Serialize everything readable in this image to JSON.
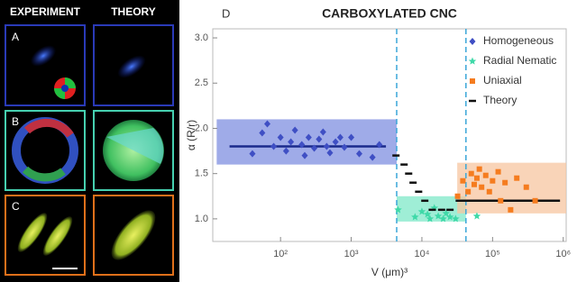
{
  "image_panels": {
    "headers": [
      "EXPERIMENT",
      "THEORY"
    ],
    "rows": [
      "A",
      "B",
      "C"
    ]
  },
  "chart_data": {
    "type": "scatter",
    "panel_label": "D",
    "title": "CARBOXYLATED CNC",
    "xlabel": "V (μm)³",
    "ylabel": "α (R/r)",
    "xscale": "log",
    "xlim": [
      11,
      1100000
    ],
    "ylim": [
      0.75,
      3.1
    ],
    "xticks": [
      {
        "value": 100,
        "label": "10²"
      },
      {
        "value": 1000,
        "label": "10³"
      },
      {
        "value": 10000,
        "label": "10⁴"
      },
      {
        "value": 100000,
        "label": "10⁵"
      },
      {
        "value": 1000000,
        "label": "10⁶"
      }
    ],
    "yticks": [
      {
        "value": 1,
        "label": "1.0"
      },
      {
        "value": 1.5,
        "label": "1.5"
      },
      {
        "value": 2,
        "label": "2.0"
      },
      {
        "value": 2.5,
        "label": "2.5"
      },
      {
        "value": 3,
        "label": "3.0"
      }
    ],
    "legend": "upper right",
    "regions": [
      {
        "x": [
          12.5,
          4400
        ],
        "y": [
          1.6,
          2.1
        ],
        "color": "#7f8fe0"
      },
      {
        "x": [
          4400,
          42000
        ],
        "y": [
          0.97,
          1.25
        ],
        "color": "#7fe8c8"
      },
      {
        "x": [
          31600,
          1100000
        ],
        "y": [
          1.06,
          1.62
        ],
        "color": "#f7c6a0"
      }
    ],
    "vlines": [
      {
        "x": 4400,
        "color": "#3aa6d8"
      },
      {
        "x": 42000,
        "color": "#3aa6d8"
      }
    ],
    "theory_lines": [
      {
        "x": [
          19,
          3100
        ],
        "y": 1.8,
        "color": "#1a2a8c"
      },
      {
        "x": [
          30000,
          900000
        ],
        "y": 1.2,
        "color": "#111111"
      }
    ],
    "series": [
      {
        "name": "Homogeneous",
        "marker": "diamond",
        "color": "#3f4fc4",
        "x": [
          40,
          55,
          65,
          80,
          100,
          120,
          140,
          160,
          200,
          220,
          250,
          300,
          350,
          400,
          450,
          500,
          600,
          700,
          800,
          1000,
          1300,
          2000,
          2500
        ],
        "values": [
          1.72,
          1.95,
          2.05,
          1.8,
          1.9,
          1.75,
          1.85,
          1.98,
          1.82,
          1.7,
          1.9,
          1.78,
          1.88,
          1.96,
          1.8,
          1.73,
          1.85,
          1.9,
          1.79,
          1.9,
          1.72,
          1.68,
          1.82
        ]
      },
      {
        "name": "Radial Nematic",
        "marker": "star",
        "color": "#3fd9a8",
        "x": [
          4600,
          8000,
          10000,
          12000,
          13000,
          15000,
          17000,
          20000,
          22000,
          25000,
          30000,
          60000
        ],
        "values": [
          1.1,
          1.02,
          1.08,
          1.05,
          1.0,
          1.12,
          1.03,
          1.0,
          1.06,
          1.02,
          1.0,
          1.03
        ]
      },
      {
        "name": "Uniaxial",
        "marker": "square",
        "color": "#f57c1f",
        "x": [
          32000,
          38000,
          45000,
          50000,
          55000,
          60000,
          65000,
          70000,
          80000,
          90000,
          100000,
          120000,
          130000,
          150000,
          180000,
          220000,
          300000,
          400000
        ],
        "values": [
          1.25,
          1.42,
          1.3,
          1.5,
          1.38,
          1.45,
          1.55,
          1.35,
          1.48,
          1.3,
          1.42,
          1.52,
          1.2,
          1.4,
          1.1,
          1.45,
          1.35,
          1.2
        ]
      },
      {
        "name": "Theory",
        "marker": "dash",
        "color": "#111111",
        "x": [
          4300,
          5600,
          6500,
          7500,
          9000,
          11000,
          14000,
          19000,
          25000
        ],
        "values": [
          1.7,
          1.6,
          1.5,
          1.4,
          1.3,
          1.2,
          1.1,
          1.1,
          1.1
        ]
      }
    ]
  }
}
